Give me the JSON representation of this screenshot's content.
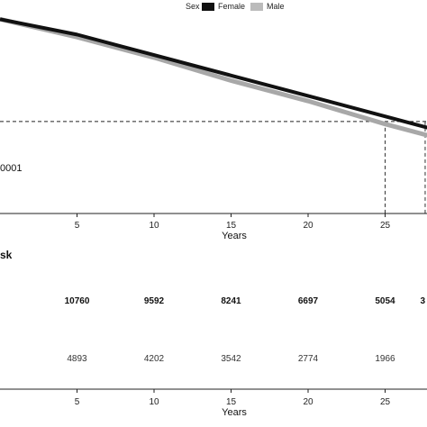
{
  "chart_data": [
    {
      "type": "line",
      "legend": {
        "title": "Sex",
        "placement": "top-right"
      },
      "series": [
        {
          "name": "Female",
          "color": "#111111",
          "x": [
            0,
            5,
            10,
            15,
            20,
            25,
            30
          ],
          "y": [
            1.0,
            0.97,
            0.93,
            0.89,
            0.85,
            0.81,
            0.77
          ]
        },
        {
          "name": "Male",
          "color": "#a8a8a8",
          "x": [
            0,
            5,
            10,
            15,
            20,
            25,
            30
          ],
          "y": [
            1.0,
            0.965,
            0.925,
            0.88,
            0.84,
            0.795,
            0.755
          ]
        }
      ],
      "reference_line_y": 0.8,
      "median_markers_x": [
        25,
        27.6
      ],
      "xlabel": "Years",
      "xlim": [
        0,
        30
      ],
      "ylim": [
        0.62,
        1.02
      ],
      "x_ticks": [
        "5",
        "10",
        "15",
        "20",
        "25"
      ],
      "annotation": "0001"
    },
    {
      "type": "table",
      "title": "sk",
      "columns": [
        "5",
        "10",
        "15",
        "20",
        "25"
      ],
      "rows": [
        {
          "group": "Female",
          "values": [
            "10760",
            "9592",
            "8241",
            "6697",
            "5054"
          ],
          "clipped_value": "3"
        },
        {
          "group": "Male",
          "values": [
            "4893",
            "4202",
            "3542",
            "2774",
            "1966"
          ]
        }
      ],
      "xlabel": "Years"
    }
  ]
}
